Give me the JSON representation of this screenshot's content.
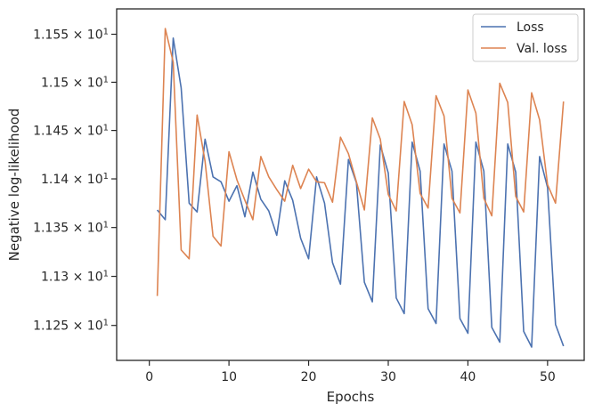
{
  "chart_data": {
    "type": "line",
    "xlabel": "Epochs",
    "ylabel": "Negative log-likelihood",
    "xlim": [
      -4.1,
      54.6
    ],
    "ylim": [
      11.2145,
      11.5765
    ],
    "yscale": "log",
    "x_ticks": [
      0,
      10,
      20,
      30,
      40,
      50
    ],
    "y_ticks": [
      11.25,
      11.3,
      11.35,
      11.4,
      11.45,
      11.5,
      11.55
    ],
    "y_tick_labels": [
      {
        "mantissa": "1.125",
        "base": "10",
        "exp": "1"
      },
      {
        "mantissa": "1.13",
        "base": "10",
        "exp": "1"
      },
      {
        "mantissa": "1.135",
        "base": "10",
        "exp": "1"
      },
      {
        "mantissa": "1.14",
        "base": "10",
        "exp": "1"
      },
      {
        "mantissa": "1.145",
        "base": "10",
        "exp": "1"
      },
      {
        "mantissa": "1.15",
        "base": "10",
        "exp": "1"
      },
      {
        "mantissa": "1.155",
        "base": "10",
        "exp": "1"
      }
    ],
    "legend_position": "top-right",
    "series": [
      {
        "name": "Loss",
        "color": "#4c72b0",
        "x": [
          1,
          2,
          3,
          4,
          5,
          6,
          7,
          8,
          9,
          10,
          11,
          12,
          13,
          14,
          15,
          16,
          17,
          18,
          19,
          20,
          21,
          22,
          23,
          24,
          25,
          26,
          27,
          28,
          29,
          30,
          31,
          32,
          33,
          34,
          35,
          36,
          37,
          38,
          39,
          40,
          41,
          42,
          43,
          44,
          45,
          46,
          47,
          48,
          49,
          50,
          51,
          52
        ],
        "values": [
          11.368,
          11.358,
          11.546,
          11.494,
          11.375,
          11.366,
          11.441,
          11.402,
          11.397,
          11.377,
          11.393,
          11.361,
          11.407,
          11.379,
          11.367,
          11.342,
          11.398,
          11.378,
          11.339,
          11.318,
          11.402,
          11.375,
          11.314,
          11.292,
          11.42,
          11.396,
          11.294,
          11.274,
          11.435,
          11.406,
          11.278,
          11.262,
          11.438,
          11.408,
          11.267,
          11.252,
          11.436,
          11.408,
          11.257,
          11.242,
          11.438,
          11.408,
          11.248,
          11.233,
          11.436,
          11.407,
          11.244,
          11.228,
          11.423,
          11.391,
          11.251,
          11.229
        ]
      },
      {
        "name": "Val. loss",
        "color": "#dd8452",
        "x": [
          1,
          2,
          3,
          4,
          5,
          6,
          7,
          8,
          9,
          10,
          11,
          12,
          13,
          14,
          15,
          16,
          17,
          18,
          19,
          20,
          21,
          22,
          23,
          24,
          25,
          26,
          27,
          28,
          29,
          30,
          31,
          32,
          33,
          34,
          35,
          36,
          37,
          38,
          39,
          40,
          41,
          42,
          43,
          44,
          45,
          46,
          47,
          48,
          49,
          50,
          51,
          52
        ],
        "values": [
          11.28,
          11.556,
          11.521,
          11.327,
          11.318,
          11.466,
          11.418,
          11.341,
          11.331,
          11.428,
          11.399,
          11.378,
          11.358,
          11.423,
          11.402,
          11.389,
          11.377,
          11.414,
          11.39,
          11.41,
          11.397,
          11.396,
          11.376,
          11.443,
          11.426,
          11.397,
          11.368,
          11.463,
          11.441,
          11.384,
          11.367,
          11.48,
          11.456,
          11.385,
          11.37,
          11.486,
          11.465,
          11.38,
          11.365,
          11.492,
          11.468,
          11.38,
          11.362,
          11.499,
          11.479,
          11.382,
          11.366,
          11.489,
          11.461,
          11.394,
          11.375,
          11.48
        ]
      }
    ]
  }
}
